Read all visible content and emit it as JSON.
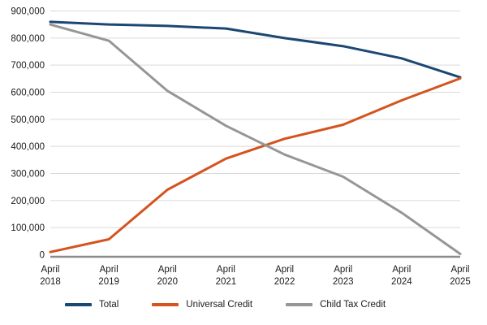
{
  "chart_data": {
    "type": "line",
    "title": "",
    "xlabel": "",
    "ylabel": "",
    "categories": [
      "April 2018",
      "April 2019",
      "April 2020",
      "April 2021",
      "April 2022",
      "April 2023",
      "April 2024",
      "April 2025"
    ],
    "series": [
      {
        "name": "Total",
        "color": "#1b4773",
        "values": [
          860000,
          850000,
          845000,
          835000,
          800000,
          770000,
          725000,
          655000
        ]
      },
      {
        "name": "Universal Credit",
        "color": "#d4531e",
        "values": [
          10000,
          57000,
          240000,
          355000,
          428000,
          480000,
          570000,
          651000
        ]
      },
      {
        "name": "Child Tax Credit",
        "color": "#969696",
        "values": [
          850000,
          790000,
          605000,
          476000,
          370000,
          288000,
          155000,
          3000
        ]
      }
    ],
    "ylim": [
      0,
      900000
    ],
    "ytick_interval": 100000,
    "ytick_labels": [
      "0",
      "100,000",
      "200,000",
      "300,000",
      "400,000",
      "500,000",
      "600,000",
      "700,000",
      "800,000",
      "900,000"
    ],
    "grid": "horizontal",
    "legend_position": "bottom",
    "colors": {
      "grid": "#d9d9d9",
      "axis": "#8c8c8c",
      "text": "#1a1a1a"
    }
  }
}
